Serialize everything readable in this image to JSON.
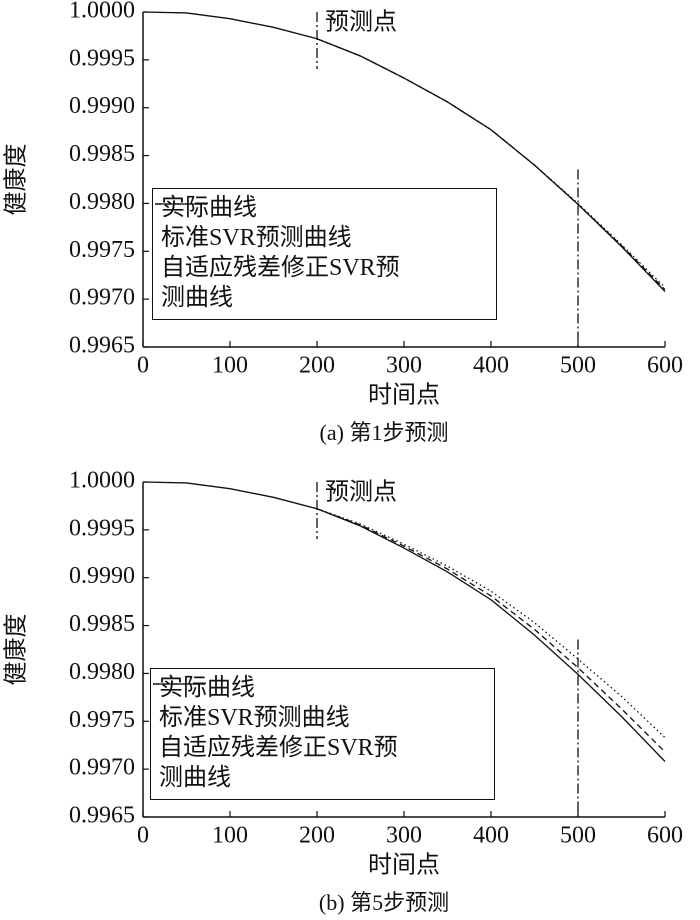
{
  "chart_data": [
    {
      "type": "line",
      "caption": "(a) 第1步预测",
      "xlabel": "时间点",
      "ylabel": "健康度",
      "annotation": "预测点",
      "marker_x": [
        200,
        500
      ],
      "x": [
        0,
        50,
        100,
        150,
        200,
        250,
        300,
        350,
        400,
        450,
        500,
        550,
        600
      ],
      "series": [
        {
          "name": "实际曲线",
          "color": "#111111",
          "style": "solid",
          "values": [
            1.0,
            0.99999,
            0.99993,
            0.99984,
            0.99972,
            0.99954,
            0.99931,
            0.99906,
            0.99877,
            0.9984,
            0.99799,
            0.99755,
            0.99708
          ]
        },
        {
          "name": "标准SVR预测曲线",
          "color": "#111111",
          "style": "dotted",
          "values": [
            null,
            null,
            null,
            null,
            0.99972,
            0.99954,
            0.99931,
            0.99906,
            0.99877,
            0.9984,
            0.998,
            0.99757,
            0.99712
          ]
        },
        {
          "name": "自适应残差修正SVR预测曲线",
          "color": "#111111",
          "style": "dashed",
          "values": [
            null,
            null,
            null,
            null,
            0.99972,
            0.99954,
            0.99931,
            0.99906,
            0.99877,
            0.9984,
            0.99799,
            0.99756,
            0.9971
          ]
        }
      ],
      "xlim": [
        0,
        600
      ],
      "xticks": [
        0,
        100,
        200,
        300,
        400,
        500,
        600
      ],
      "ylim": [
        0.9965,
        1.0
      ],
      "yticks": [
        0.9965,
        {
          "value": 0.997,
          "label": "0.9970"
        },
        0.9975,
        {
          "value": 0.998,
          "label": "0.9980"
        },
        0.9985,
        {
          "value": 0.999,
          "label": "0.9990"
        },
        0.9995,
        {
          "value": 1.0,
          "label": "1.0000"
        }
      ]
    },
    {
      "type": "line",
      "caption": "(b) 第5步预测",
      "xlabel": "时间点",
      "ylabel": "健康度",
      "annotation": "预测点",
      "marker_x": [
        200,
        500
      ],
      "x": [
        0,
        50,
        100,
        150,
        200,
        250,
        300,
        350,
        400,
        450,
        500,
        550,
        600
      ],
      "series": [
        {
          "name": "实际曲线",
          "color": "#111111",
          "style": "solid",
          "values": [
            1.0,
            0.99999,
            0.99993,
            0.99984,
            0.99972,
            0.99954,
            0.99931,
            0.99906,
            0.99877,
            0.9984,
            0.99799,
            0.99755,
            0.99708
          ]
        },
        {
          "name": "标准SVR预测曲线",
          "color": "#111111",
          "style": "dotted",
          "values": [
            null,
            null,
            null,
            null,
            0.99972,
            0.99956,
            0.99935,
            0.99912,
            0.99886,
            0.99853,
            0.99815,
            0.99776,
            0.99733
          ]
        },
        {
          "name": "自适应残差修正SVR预测曲线",
          "color": "#111111",
          "style": "dashed",
          "values": [
            null,
            null,
            null,
            null,
            0.99972,
            0.99955,
            0.99933,
            0.99909,
            0.99881,
            0.99846,
            0.99806,
            0.99763,
            0.99718
          ]
        }
      ],
      "xlim": [
        0,
        600
      ],
      "xticks": [
        0,
        100,
        200,
        300,
        400,
        500,
        600
      ],
      "ylim": [
        0.9965,
        1.0
      ],
      "yticks": [
        0.9965,
        {
          "value": 0.997,
          "label": "0.9970"
        },
        0.9975,
        {
          "value": 0.998,
          "label": "0.9980"
        },
        0.9985,
        {
          "value": 0.999,
          "label": "0.9990"
        },
        0.9995,
        {
          "value": 1.0,
          "label": "1.0000"
        }
      ]
    }
  ]
}
